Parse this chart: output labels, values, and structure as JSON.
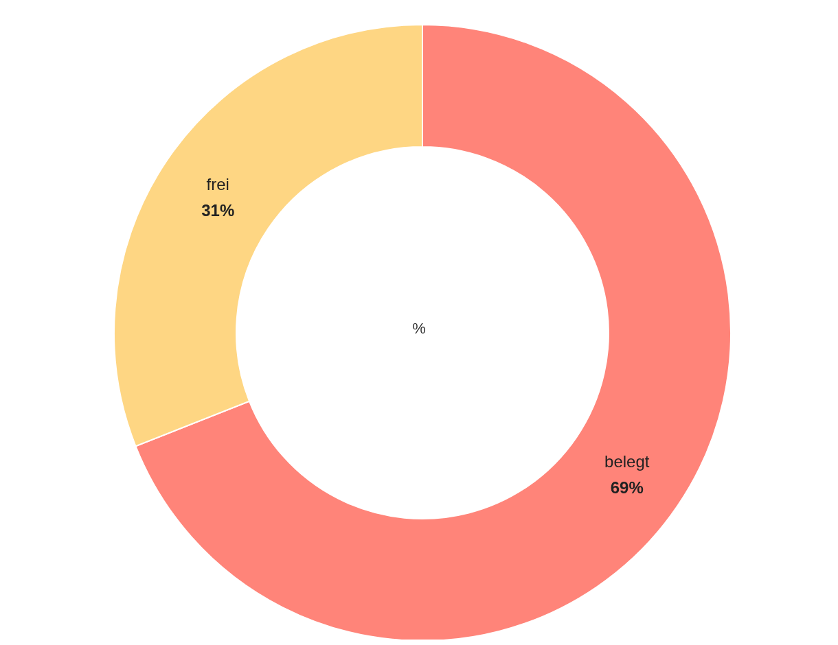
{
  "chart_data": {
    "type": "donut",
    "categories": [
      "belegt",
      "frei"
    ],
    "values": [
      69,
      31
    ],
    "colors": [
      "#ff8479",
      "#fed683"
    ],
    "value_labels": [
      "69%",
      "31%"
    ],
    "annotations": [
      "%"
    ],
    "legend": false
  }
}
